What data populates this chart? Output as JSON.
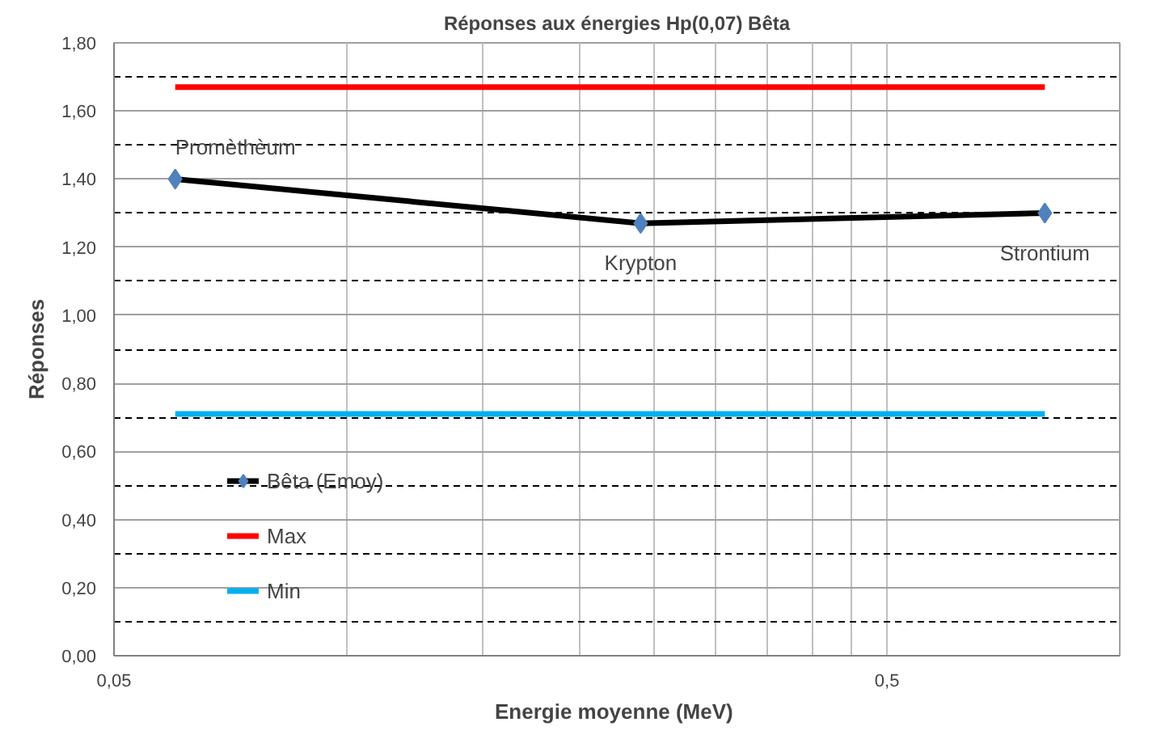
{
  "chart_data": {
    "type": "line",
    "title": "Réponses aux énergies Hp(0,07) Bêta",
    "xlabel": "Energie moyenne  (MeV)",
    "ylabel": "Réponses",
    "log": "x",
    "xlim": [
      0.05,
      1
    ],
    "ylim": [
      0,
      1.8
    ],
    "xticks": [
      {
        "value": 0.05,
        "label": "0,05"
      },
      {
        "value": 0.1,
        "label": null
      },
      {
        "value": 0.15,
        "label": null
      },
      {
        "value": 0.2,
        "label": null
      },
      {
        "value": 0.25,
        "label": null
      },
      {
        "value": 0.3,
        "label": null
      },
      {
        "value": 0.35,
        "label": null
      },
      {
        "value": 0.4,
        "label": null
      },
      {
        "value": 0.45,
        "label": null
      },
      {
        "value": 0.5,
        "label": "0,5"
      }
    ],
    "yticks": [
      {
        "value": 0,
        "label": "0,00"
      },
      {
        "value": 0.2,
        "label": "0,20"
      },
      {
        "value": 0.4,
        "label": "0,40"
      },
      {
        "value": 0.6,
        "label": "0,60"
      },
      {
        "value": 0.8,
        "label": "0,80"
      },
      {
        "value": 1.0,
        "label": "1,00"
      },
      {
        "value": 1.2,
        "label": "1,20"
      },
      {
        "value": 1.4,
        "label": "1,40"
      },
      {
        "value": 1.6,
        "label": "1,60"
      },
      {
        "value": 1.8,
        "label": "1,80"
      }
    ],
    "grid": true,
    "legend": "left",
    "series": [
      {
        "name": "Bêta (Emoy)",
        "color": "#000000",
        "marker": "diamond",
        "x": [
          0.06,
          0.24,
          0.8
        ],
        "values": [
          1.4,
          1.27,
          1.3
        ]
      },
      {
        "name": "Max",
        "color": "#ff0000",
        "marker": "none",
        "x": [
          0.06,
          0.8
        ],
        "values": [
          1.67,
          1.67
        ]
      },
      {
        "name": "Min",
        "color": "#00b0f0",
        "marker": "none",
        "x": [
          0.06,
          0.8
        ],
        "values": [
          0.71,
          0.71
        ]
      }
    ],
    "annotations": [
      {
        "text": "Promèthèum",
        "x": 0.06,
        "y": 1.4
      },
      {
        "text": "Krypton",
        "x": 0.24,
        "y": 1.27
      },
      {
        "text": "Strontium",
        "x": 0.8,
        "y": 1.3
      }
    ]
  }
}
